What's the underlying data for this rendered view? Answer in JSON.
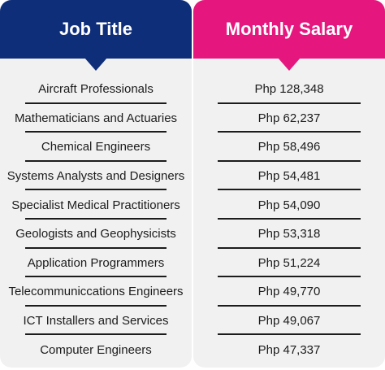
{
  "headers": {
    "job_title": "Job Title",
    "monthly_salary": "Monthly Salary"
  },
  "colors": {
    "job_header": "#0f2e7a",
    "salary_header": "#e5177e",
    "panel_bg": "#f1f1f1"
  },
  "rows": [
    {
      "job": "Aircraft Professionals",
      "salary": "Php 128,348"
    },
    {
      "job": "Mathematicians and Actuaries",
      "salary": "Php 62,237"
    },
    {
      "job": "Chemical Engineers",
      "salary": "Php 58,496"
    },
    {
      "job": "Systems Analysts and Designers",
      "salary": "Php 54,481"
    },
    {
      "job": "Specialist Medical Practitioners",
      "salary": "Php 54,090"
    },
    {
      "job": "Geologists and Geophysicists",
      "salary": "Php 53,318"
    },
    {
      "job": "Application Programmers",
      "salary": "Php 51,224"
    },
    {
      "job": "Telecommuniccations Engineers",
      "salary": "Php 49,770"
    },
    {
      "job": "ICT Installers and Services",
      "salary": "Php 49,067"
    },
    {
      "job": "Computer Engineers",
      "salary": "Php 47,337"
    }
  ]
}
